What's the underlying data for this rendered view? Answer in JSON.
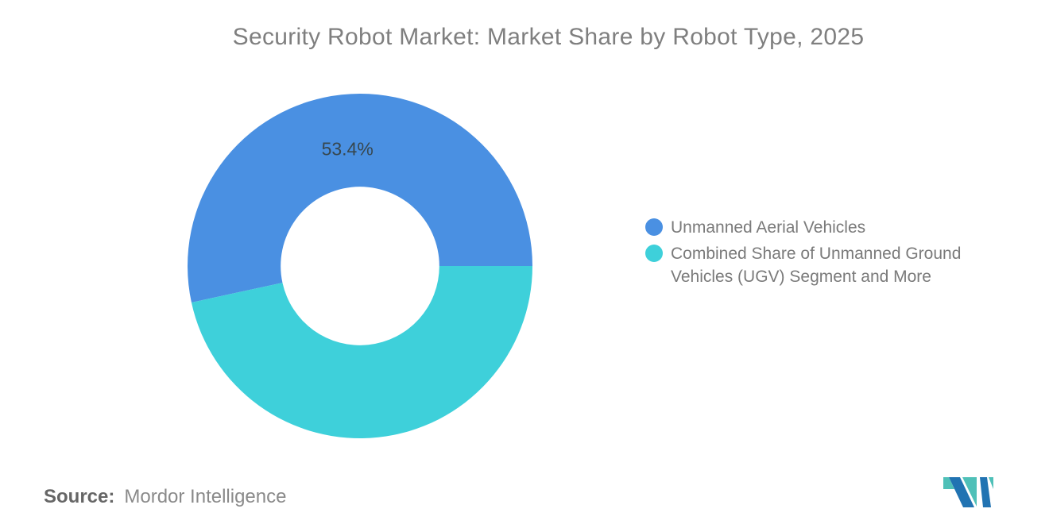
{
  "chart_data": {
    "type": "pie",
    "subtype": "donut",
    "title": "Security Robot Market: Market Share by Robot Type, 2025",
    "categories": [
      "Unmanned Aerial Vehicles",
      "Combined Share of Unmanned Ground Vehicles (UGV) Segment and More"
    ],
    "values": [
      53.4,
      46.6
    ],
    "unit": "%",
    "colors": [
      "#4a90e2",
      "#3ed0da"
    ],
    "data_labels": [
      "53.4%",
      ""
    ],
    "data_label_color": "#37474f",
    "start_angle_deg": 0,
    "direction": "counterclockwise",
    "inner_radius_ratio": 0.46,
    "legend_position": "right",
    "grid": false
  },
  "source": {
    "label": "Source:",
    "value": "Mordor Intelligence"
  },
  "logo": {
    "name": "mordor-intelligence-logo",
    "teal": "#4fc0b8",
    "blue": "#2173b2"
  }
}
